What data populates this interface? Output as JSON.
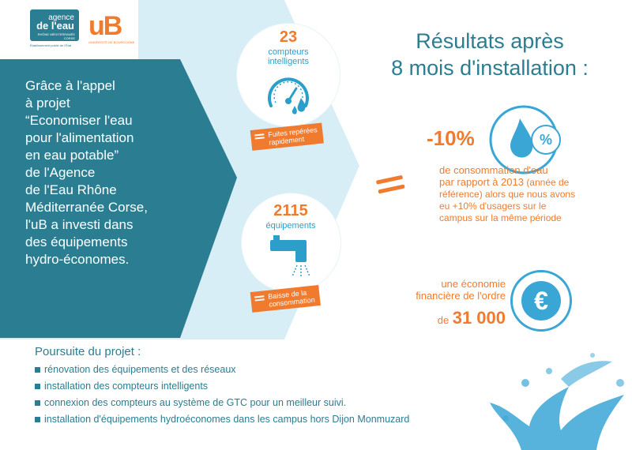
{
  "logos": {
    "agence_line1": "agence",
    "agence_line2": "de l'eau",
    "agence_line3": "RHÔNE MÉDITERRANÉE CORSE",
    "agence_sub": "Établissement public de l'État",
    "ub_text": "uB",
    "ub_sub": "UNIVERSITÉ DE BOURGOGNE"
  },
  "intro": {
    "lines": [
      "Grâce à l'appel",
      "à projet",
      "“Economiser l'eau",
      "pour l'alimentation",
      "en eau potable”",
      "de l'Agence",
      "de l'Eau Rhône",
      "Méditerranée Corse,",
      "l'uB a investi dans",
      "des équipements",
      "hydro-économes."
    ]
  },
  "counters": {
    "meters_count": "23",
    "meters_label_1": "compteurs",
    "meters_label_2": "intelligents",
    "meters_tag_1": "Fuites repérées",
    "meters_tag_2": "rapidement",
    "equip_count": "2115",
    "equip_label": "équipements",
    "equip_tag_1": "Baisse de la",
    "equip_tag_2": "consommation"
  },
  "results": {
    "title_1": "Résultats après",
    "title_2": "8 mois d'installation :",
    "percent": "-10%",
    "percent_icon_text": "%",
    "consumption_1": "de consommation d'eau",
    "consumption_2": "par rapport à 2013",
    "consumption_3": "(année de",
    "consumption_4": "référence) alors que nous avons",
    "consumption_5": "eu +10% d'usagers sur le",
    "consumption_6": "campus sur la même période",
    "economy_1": "une économie",
    "economy_2": "financière de l'ordre",
    "economy_de": "de",
    "economy_amount": "31 000",
    "euro_symbol": "€"
  },
  "suite": {
    "title": "Poursuite du projet :",
    "items": [
      "rénovation des équipements et des réseaux",
      "installation des compteurs intelligents",
      "connexion des compteurs au système de GTC pour un meilleur suivi.",
      "installation d'équipements hydroéconomes dans les campus hors Dijon Monmuzard"
    ]
  },
  "colors": {
    "teal": "#2b7d92",
    "orange": "#f07b2e",
    "light_blue": "#d7eef7",
    "drop_blue": "#3aa6d6"
  },
  "icons": [
    "gauge-icon",
    "water-drop-icon",
    "faucet-icon",
    "percent-icon",
    "euro-icon",
    "water-splash-icon"
  ]
}
